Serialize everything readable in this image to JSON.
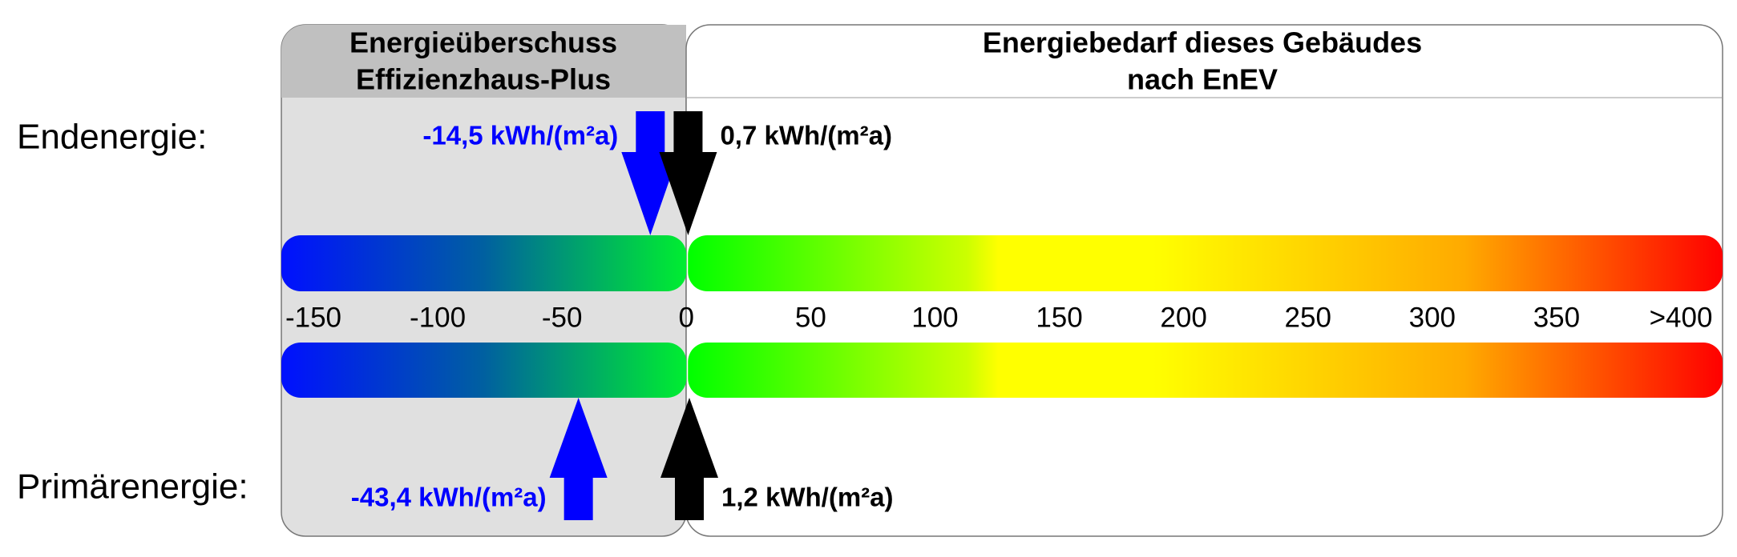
{
  "chart_data": {
    "type": "energy-scale",
    "left_header": [
      "Energieüberschuss",
      "Effizienzhaus-Plus"
    ],
    "right_header": [
      "Energiebedarf dieses Gebäudes",
      "nach EnEV"
    ],
    "xlim": [
      -150,
      400
    ],
    "xticks": [
      -150,
      -100,
      -50,
      0,
      50,
      100,
      150,
      200,
      250,
      300,
      350,
      {
        "value": 400,
        "label": ">400"
      }
    ],
    "series": [
      {
        "name": "Endenergie:",
        "values": [
          -14.5,
          0.7
        ],
        "value_labels": [
          "-14,5 kWh/(m²a)",
          "0,7 kWh/(m²a)"
        ],
        "colors": [
          "#0000ff",
          "#000000"
        ]
      },
      {
        "name": "Primärenergie:",
        "values": [
          -43.4,
          1.2
        ],
        "value_labels": [
          "-43,4 kWh/(m²a)",
          "1,2 kWh/(m²a)"
        ],
        "colors": [
          "#0000ff",
          "#000000"
        ]
      }
    ]
  }
}
